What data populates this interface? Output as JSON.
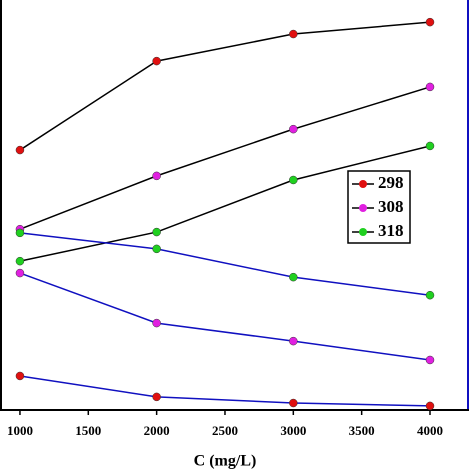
{
  "chart_data": {
    "type": "line",
    "x_label": "C (mg/L)",
    "x": [
      1000,
      2000,
      3000,
      4000
    ],
    "xlim": [
      854,
      4278
    ],
    "xticks": [
      1000,
      1500,
      2000,
      2500,
      3000,
      3500,
      4000
    ],
    "ylim": [
      0,
      100
    ],
    "y2lim": [
      0,
      100
    ],
    "legend_position": "right",
    "series": [
      {
        "name": "298",
        "color": "#e01010",
        "line_color": "#000000",
        "values": [
          63.4,
          85.1,
          91.7,
          94.6
        ]
      },
      {
        "name": "308",
        "color": "#e020e0",
        "line_color": "#000000",
        "values": [
          44.1,
          57.1,
          68.5,
          78.8
        ]
      },
      {
        "name": "318",
        "color": "#20d020",
        "line_color": "#000000",
        "values": [
          36.3,
          43.4,
          56.1,
          64.4
        ]
      },
      {
        "color": "#20d020",
        "line_color": "#1010c0",
        "axis": "y2",
        "values": [
          43.2,
          39.3,
          32.4,
          28.0
        ]
      },
      {
        "color": "#e020e0",
        "line_color": "#1010c0",
        "axis": "y2",
        "values": [
          33.4,
          21.2,
          16.8,
          12.2
        ]
      },
      {
        "color": "#e01010",
        "line_color": "#1010c0",
        "axis": "y2",
        "values": [
          8.3,
          3.2,
          1.7,
          1.0
        ]
      }
    ]
  }
}
